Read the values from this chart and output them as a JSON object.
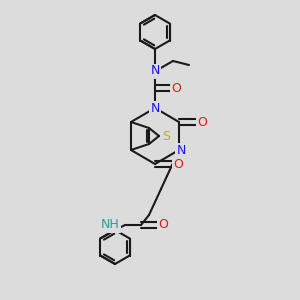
{
  "bg_color": "#dcdcdc",
  "bond_color": "#1a1a1a",
  "bond_lw": 1.5,
  "fs": 9,
  "colors": {
    "N": "#1515ee",
    "O": "#ee1515",
    "S": "#b8b800",
    "NH": "#339999",
    "C": "#1a1a1a"
  }
}
